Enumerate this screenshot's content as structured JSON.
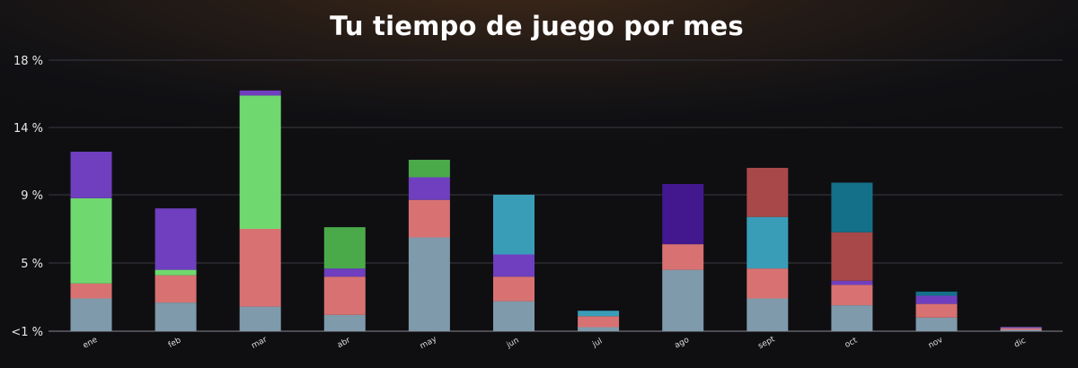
{
  "chart_data": {
    "type": "bar",
    "stacked": true,
    "title": "Tu tiempo de juego por mes",
    "xlabel": "",
    "ylabel": "",
    "y_ticks": [
      {
        "value": 0,
        "label": "<1 %"
      },
      {
        "value": 5,
        "label": "5 %"
      },
      {
        "value": 9,
        "label": "9 %"
      },
      {
        "value": 14,
        "label": "14 %"
      },
      {
        "value": 18,
        "label": "18 %"
      }
    ],
    "ylim": [
      0,
      18
    ],
    "grid": true,
    "categories": [
      "ene",
      "feb",
      "mar",
      "abr",
      "may",
      "jun",
      "jul",
      "ago",
      "sept",
      "oct",
      "nov",
      "dic"
    ],
    "stacks": [
      [
        {
          "value": 2.4,
          "color": "#7f9aab"
        },
        {
          "value": 1.1,
          "color": "#d87272"
        },
        {
          "value": 5.3,
          "color": "#6fd86f"
        },
        {
          "value": 3.4,
          "color": "#6f3fbf"
        }
      ],
      [
        {
          "value": 2.1,
          "color": "#7f9aab"
        },
        {
          "value": 2.0,
          "color": "#d87272"
        },
        {
          "value": 0.4,
          "color": "#6fd86f"
        },
        {
          "value": 3.7,
          "color": "#6f3fbf"
        }
      ],
      [
        {
          "value": 1.8,
          "color": "#7f9aab"
        },
        {
          "value": 5.2,
          "color": "#d87272"
        },
        {
          "value": 8.9,
          "color": "#6fd86f"
        },
        {
          "value": 0.3,
          "color": "#6f3fbf"
        }
      ],
      [
        {
          "value": 1.2,
          "color": "#7f9aab"
        },
        {
          "value": 2.8,
          "color": "#d87272"
        },
        {
          "value": 0.6,
          "color": "#6f3fbf"
        },
        {
          "value": 2.5,
          "color": "#4aaa4a"
        }
      ],
      [
        {
          "value": 6.5,
          "color": "#7f9aab"
        },
        {
          "value": 2.2,
          "color": "#d87272"
        },
        {
          "value": 1.6,
          "color": "#6f3fbf"
        },
        {
          "value": 1.3,
          "color": "#4aaa4a"
        }
      ],
      [
        {
          "value": 2.2,
          "color": "#7f9aab"
        },
        {
          "value": 1.8,
          "color": "#d87272"
        },
        {
          "value": 1.5,
          "color": "#6f3fbf"
        },
        {
          "value": 3.5,
          "color": "#3a9db8"
        }
      ],
      [
        {
          "value": 0.3,
          "color": "#7f9aab"
        },
        {
          "value": 0.8,
          "color": "#d87272"
        },
        {
          "value": 0.4,
          "color": "#3a9db8"
        }
      ],
      [
        {
          "value": 4.5,
          "color": "#7f9aab"
        },
        {
          "value": 1.6,
          "color": "#d87272"
        },
        {
          "value": 3.7,
          "color": "#43188f"
        }
      ],
      [
        {
          "value": 2.4,
          "color": "#7f9aab"
        },
        {
          "value": 2.2,
          "color": "#d87272"
        },
        {
          "value": 3.1,
          "color": "#3a9db8"
        },
        {
          "value": 3.3,
          "color": "#a84848"
        }
      ],
      [
        {
          "value": 1.9,
          "color": "#7f9aab"
        },
        {
          "value": 1.5,
          "color": "#d87272"
        },
        {
          "value": 0.3,
          "color": "#6f3fbf"
        },
        {
          "value": 3.1,
          "color": "#a84848"
        },
        {
          "value": 3.1,
          "color": "#137088"
        }
      ],
      [
        {
          "value": 1.0,
          "color": "#7f9aab"
        },
        {
          "value": 1.0,
          "color": "#d87272"
        },
        {
          "value": 0.6,
          "color": "#6f3fbf"
        },
        {
          "value": 0.3,
          "color": "#137088"
        }
      ],
      [
        {
          "value": 0.1,
          "color": "#7f9aab"
        },
        {
          "value": 0.1,
          "color": "#d87272"
        },
        {
          "value": 0.1,
          "color": "#9a68c8"
        }
      ]
    ],
    "colors": {
      "grid": "#3a3a42",
      "axis": "#8a8a94",
      "title": "#ffffff"
    }
  }
}
